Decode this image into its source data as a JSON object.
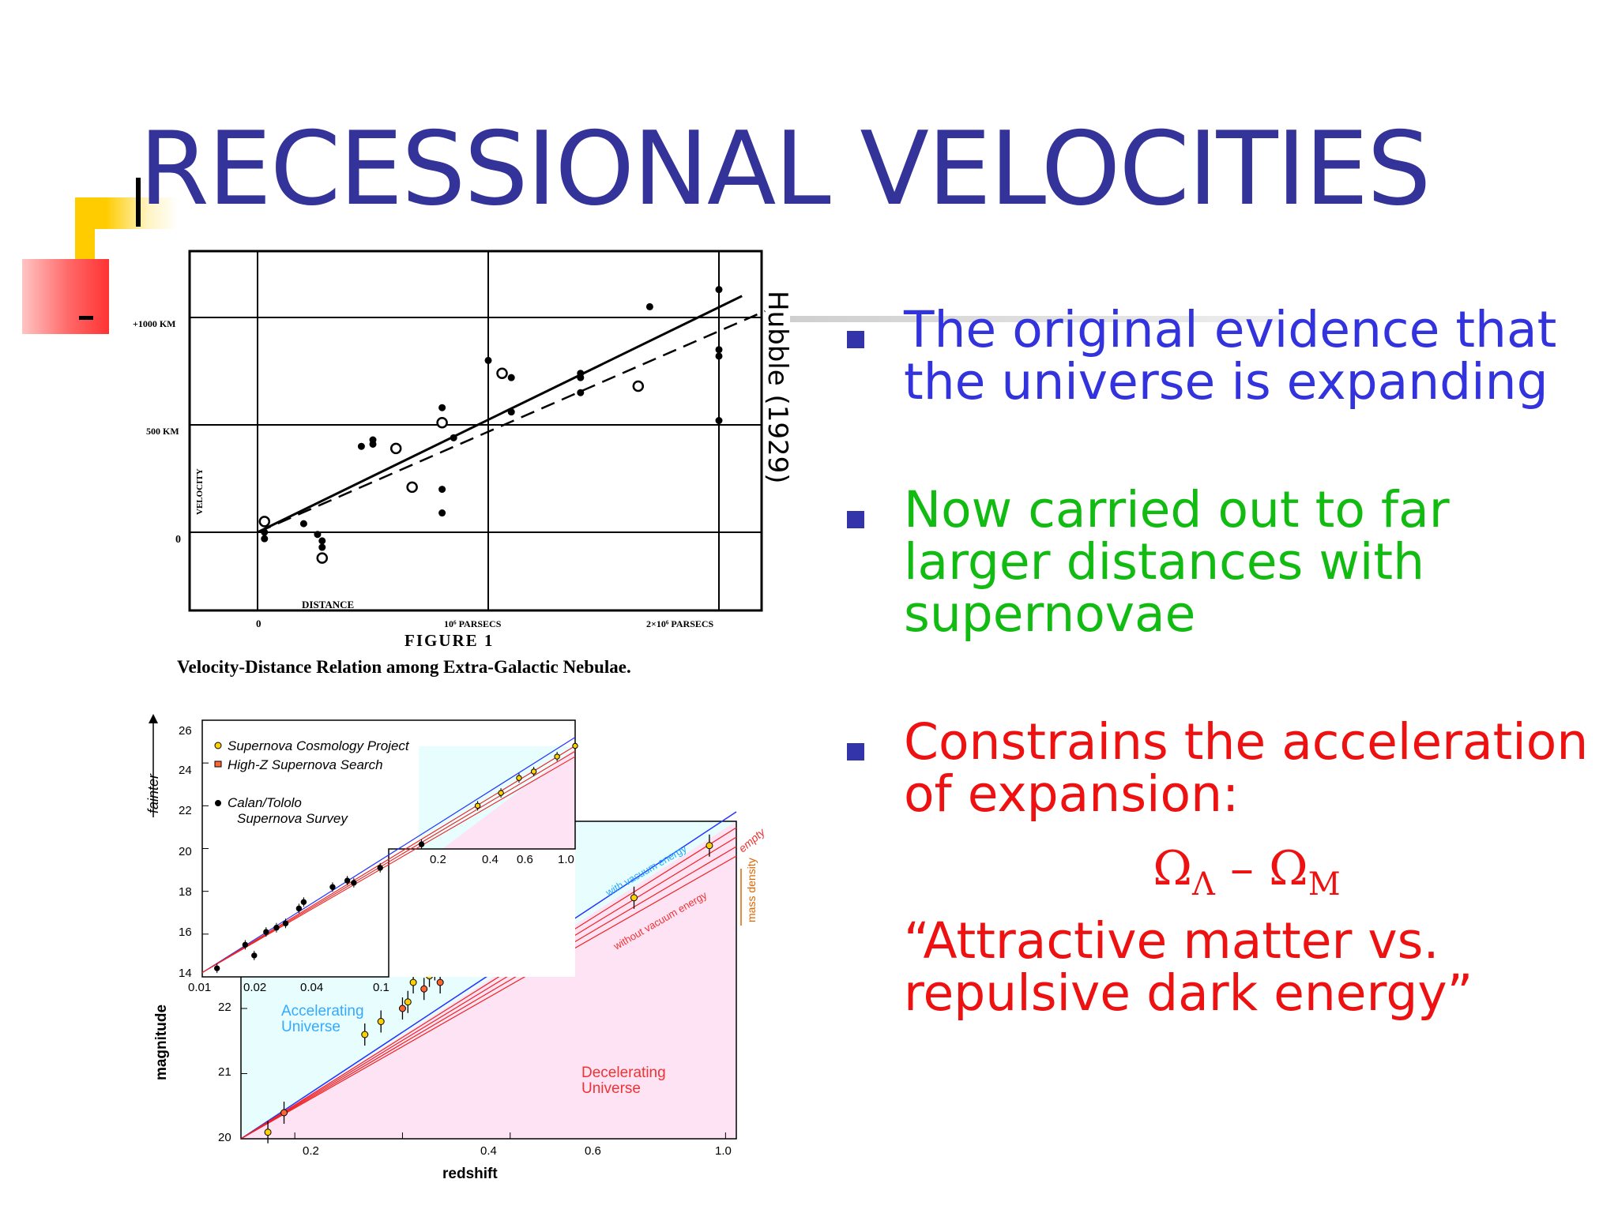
{
  "slide": {
    "title": "RECESSIONAL VELOCITIES",
    "colors": {
      "title": "#333399",
      "bullet1": "#3333dd",
      "bullet2": "#11bb11",
      "bullet3": "#ee1111",
      "bullet_marker": "#3333aa",
      "deco_yellow": "#ffcc00",
      "deco_red": "#ff3333"
    },
    "credit": "Hubble (1929)",
    "bullets": [
      {
        "text": "The original evidence that the universe is expanding"
      },
      {
        "text": "Now carried out to far larger distances with supernovae"
      },
      {
        "text": "Constrains the acceleration of expansion:",
        "formula_main": "Ω",
        "formula_sub1": "Λ",
        "formula_op": " – Ω",
        "formula_sub2": "M",
        "quote": "“Attractive matter vs. repulsive dark energy”"
      }
    ]
  },
  "chart_data": [
    {
      "type": "scatter",
      "title": "FIGURE 1",
      "caption": "Velocity-Distance Relation among Extra-Galactic Nebulae.",
      "ylabel": "VELOCITY",
      "xlabel": "DISTANCE",
      "y_ticks": [
        "+1000 KM",
        "500 KM",
        "0"
      ],
      "x_ticks": [
        "0",
        "10⁶ PARSECS",
        "2×10⁶ PARSECS"
      ],
      "xlim": [
        -0.7,
        2.05
      ],
      "ylim": [
        -350,
        1350
      ],
      "grid": true,
      "points_filled": [
        [
          0.03,
          0
        ],
        [
          0.03,
          -30
        ],
        [
          0.2,
          40
        ],
        [
          0.26,
          -10
        ],
        [
          0.28,
          -40
        ],
        [
          0.28,
          -70
        ],
        [
          0.45,
          400
        ],
        [
          0.5,
          430
        ],
        [
          0.5,
          410
        ],
        [
          0.8,
          580
        ],
        [
          0.8,
          200
        ],
        [
          0.8,
          90
        ],
        [
          0.85,
          440
        ],
        [
          1.0,
          800
        ],
        [
          1.1,
          720
        ],
        [
          1.1,
          560
        ],
        [
          1.4,
          650
        ],
        [
          1.4,
          740
        ],
        [
          1.7,
          1050
        ],
        [
          1.4,
          720
        ],
        [
          2.0,
          1130
        ],
        [
          2.0,
          850
        ],
        [
          2.0,
          820
        ],
        [
          2.0,
          520
        ]
      ],
      "points_open": [
        [
          0.03,
          50
        ],
        [
          0.28,
          -120
        ],
        [
          0.6,
          390
        ],
        [
          0.67,
          210
        ],
        [
          0.8,
          510
        ],
        [
          1.06,
          740
        ],
        [
          1.65,
          680
        ]
      ],
      "fit_solid": [
        [
          0.0,
          0
        ],
        [
          2.1,
          1100
        ]
      ],
      "fit_dashed": [
        [
          0.0,
          0
        ],
        [
          2.2,
          1030
        ]
      ]
    },
    {
      "type": "scatter",
      "xlabel": "redshift",
      "ylabel": "magnitude",
      "inset_ylabel": "fainter",
      "x_ticks": [
        "0.2",
        "0.4",
        "0.6",
        "1.0"
      ],
      "y_ticks": [
        "20",
        "21",
        "22"
      ],
      "inset_x_ticks": [
        "0.01",
        "0.02",
        "0.04",
        "0.1",
        "0.2",
        "0.4",
        "0.6",
        "1.0"
      ],
      "inset_y_ticks": [
        "14",
        "16",
        "18",
        "20",
        "22",
        "24",
        "26"
      ],
      "legend": [
        "Supernova Cosmology Project",
        "High-Z Supernova Search",
        "Calan/Tololo Supernova Survey"
      ],
      "region_labels": [
        "Accelerating Universe",
        "Decelerating Universe"
      ],
      "line_labels": [
        "with vacuum energy",
        "without vacuum energy",
        "empty",
        "mass density"
      ],
      "main_points": [
        [
          0.15,
          20.1
        ],
        [
          0.18,
          20.4
        ],
        [
          0.33,
          21.6
        ],
        [
          0.36,
          21.8
        ],
        [
          0.4,
          22.0
        ],
        [
          0.41,
          22.1
        ],
        [
          0.42,
          22.4
        ],
        [
          0.44,
          22.3
        ],
        [
          0.45,
          22.5
        ],
        [
          0.46,
          22.6
        ],
        [
          0.47,
          22.4
        ],
        [
          0.48,
          22.9
        ],
        [
          0.5,
          23.0
        ],
        [
          0.52,
          22.9
        ],
        [
          0.53,
          22.8
        ],
        [
          0.54,
          23.0
        ],
        [
          0.56,
          23.2
        ],
        [
          0.57,
          23.3
        ],
        [
          0.6,
          23.1
        ],
        [
          0.62,
          23.4
        ],
        [
          0.83,
          23.7
        ],
        [
          0.97,
          24.5
        ]
      ],
      "inset_points": [
        [
          0.012,
          14.4
        ],
        [
          0.017,
          15.5
        ],
        [
          0.019,
          15.0
        ],
        [
          0.022,
          16.1
        ],
        [
          0.025,
          16.3
        ],
        [
          0.028,
          16.5
        ],
        [
          0.033,
          17.2
        ],
        [
          0.035,
          17.5
        ],
        [
          0.05,
          18.2
        ],
        [
          0.06,
          18.5
        ],
        [
          0.065,
          18.4
        ],
        [
          0.09,
          19.1
        ],
        [
          0.15,
          20.2
        ],
        [
          0.3,
          22.0
        ],
        [
          0.4,
          22.6
        ],
        [
          0.5,
          23.3
        ],
        [
          0.6,
          23.6
        ],
        [
          0.8,
          24.3
        ],
        [
          1.0,
          24.8
        ]
      ]
    }
  ]
}
